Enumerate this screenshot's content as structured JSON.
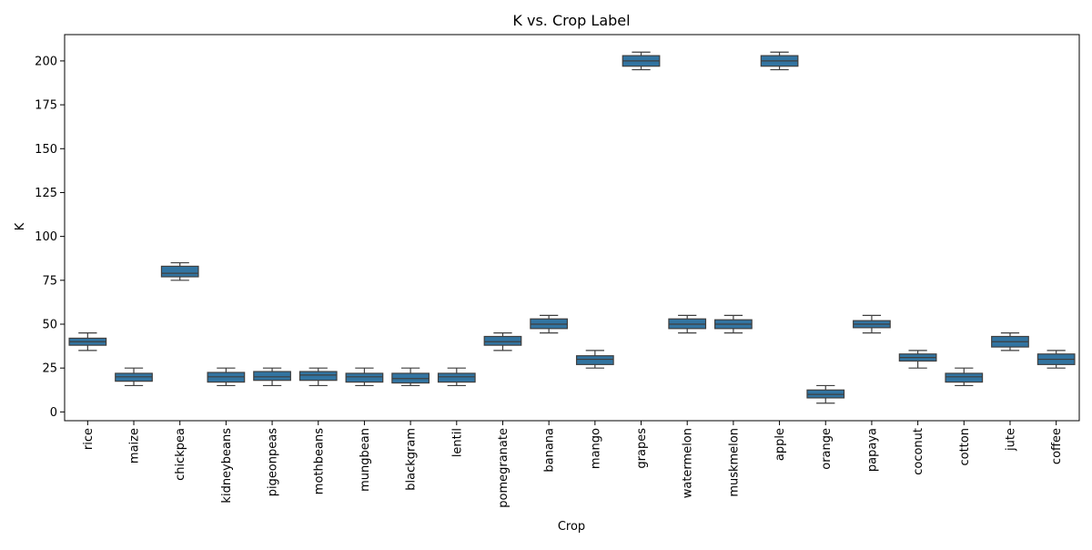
{
  "chart_data": {
    "type": "box",
    "title": "K vs. Crop Label",
    "xlabel": "Crop",
    "ylabel": "K",
    "ylim": [
      -5,
      215
    ],
    "yticks": [
      0,
      25,
      50,
      75,
      100,
      125,
      150,
      175,
      200
    ],
    "grid": false,
    "legend": "none",
    "categories": [
      "rice",
      "maize",
      "chickpea",
      "kidneybeans",
      "pigeonpeas",
      "mothbeans",
      "mungbean",
      "blackgram",
      "lentil",
      "pomegranate",
      "banana",
      "mango",
      "grapes",
      "watermelon",
      "muskmelon",
      "apple",
      "orange",
      "papaya",
      "coconut",
      "cotton",
      "jute",
      "coffee"
    ],
    "box_color": "#3274a1",
    "line_color": "#3f3f3f",
    "boxes": [
      {
        "min": 35,
        "q1": 38,
        "median": 40,
        "q3": 42,
        "max": 45
      },
      {
        "min": 15,
        "q1": 17.5,
        "median": 20,
        "q3": 22,
        "max": 25
      },
      {
        "min": 75,
        "q1": 77,
        "median": 79,
        "q3": 83,
        "max": 85
      },
      {
        "min": 15,
        "q1": 17,
        "median": 20,
        "q3": 22.5,
        "max": 25
      },
      {
        "min": 15,
        "q1": 18,
        "median": 20,
        "q3": 23,
        "max": 25
      },
      {
        "min": 15,
        "q1": 18,
        "median": 21,
        "q3": 23,
        "max": 25
      },
      {
        "min": 15,
        "q1": 17,
        "median": 20,
        "q3": 22,
        "max": 25
      },
      {
        "min": 15,
        "q1": 16.5,
        "median": 19,
        "q3": 22,
        "max": 25
      },
      {
        "min": 15,
        "q1": 17,
        "median": 20,
        "q3": 22,
        "max": 25
      },
      {
        "min": 35,
        "q1": 38,
        "median": 40,
        "q3": 43,
        "max": 45
      },
      {
        "min": 45,
        "q1": 47.5,
        "median": 50,
        "q3": 53,
        "max": 55
      },
      {
        "min": 25,
        "q1": 27,
        "median": 30,
        "q3": 32,
        "max": 35
      },
      {
        "min": 195,
        "q1": 197,
        "median": 200,
        "q3": 203,
        "max": 205
      },
      {
        "min": 45,
        "q1": 47.5,
        "median": 50,
        "q3": 53,
        "max": 55
      },
      {
        "min": 45,
        "q1": 47.5,
        "median": 50,
        "q3": 52.5,
        "max": 55
      },
      {
        "min": 195,
        "q1": 197,
        "median": 200,
        "q3": 203,
        "max": 205
      },
      {
        "min": 5,
        "q1": 8,
        "median": 10,
        "q3": 12.5,
        "max": 15
      },
      {
        "min": 45,
        "q1": 48,
        "median": 50,
        "q3": 52,
        "max": 55
      },
      {
        "min": 25,
        "q1": 29,
        "median": 31,
        "q3": 33,
        "max": 35
      },
      {
        "min": 15,
        "q1": 17,
        "median": 20,
        "q3": 22,
        "max": 25
      },
      {
        "min": 35,
        "q1": 37,
        "median": 40,
        "q3": 43,
        "max": 45
      },
      {
        "min": 25,
        "q1": 27,
        "median": 30,
        "q3": 33,
        "max": 35
      }
    ]
  }
}
